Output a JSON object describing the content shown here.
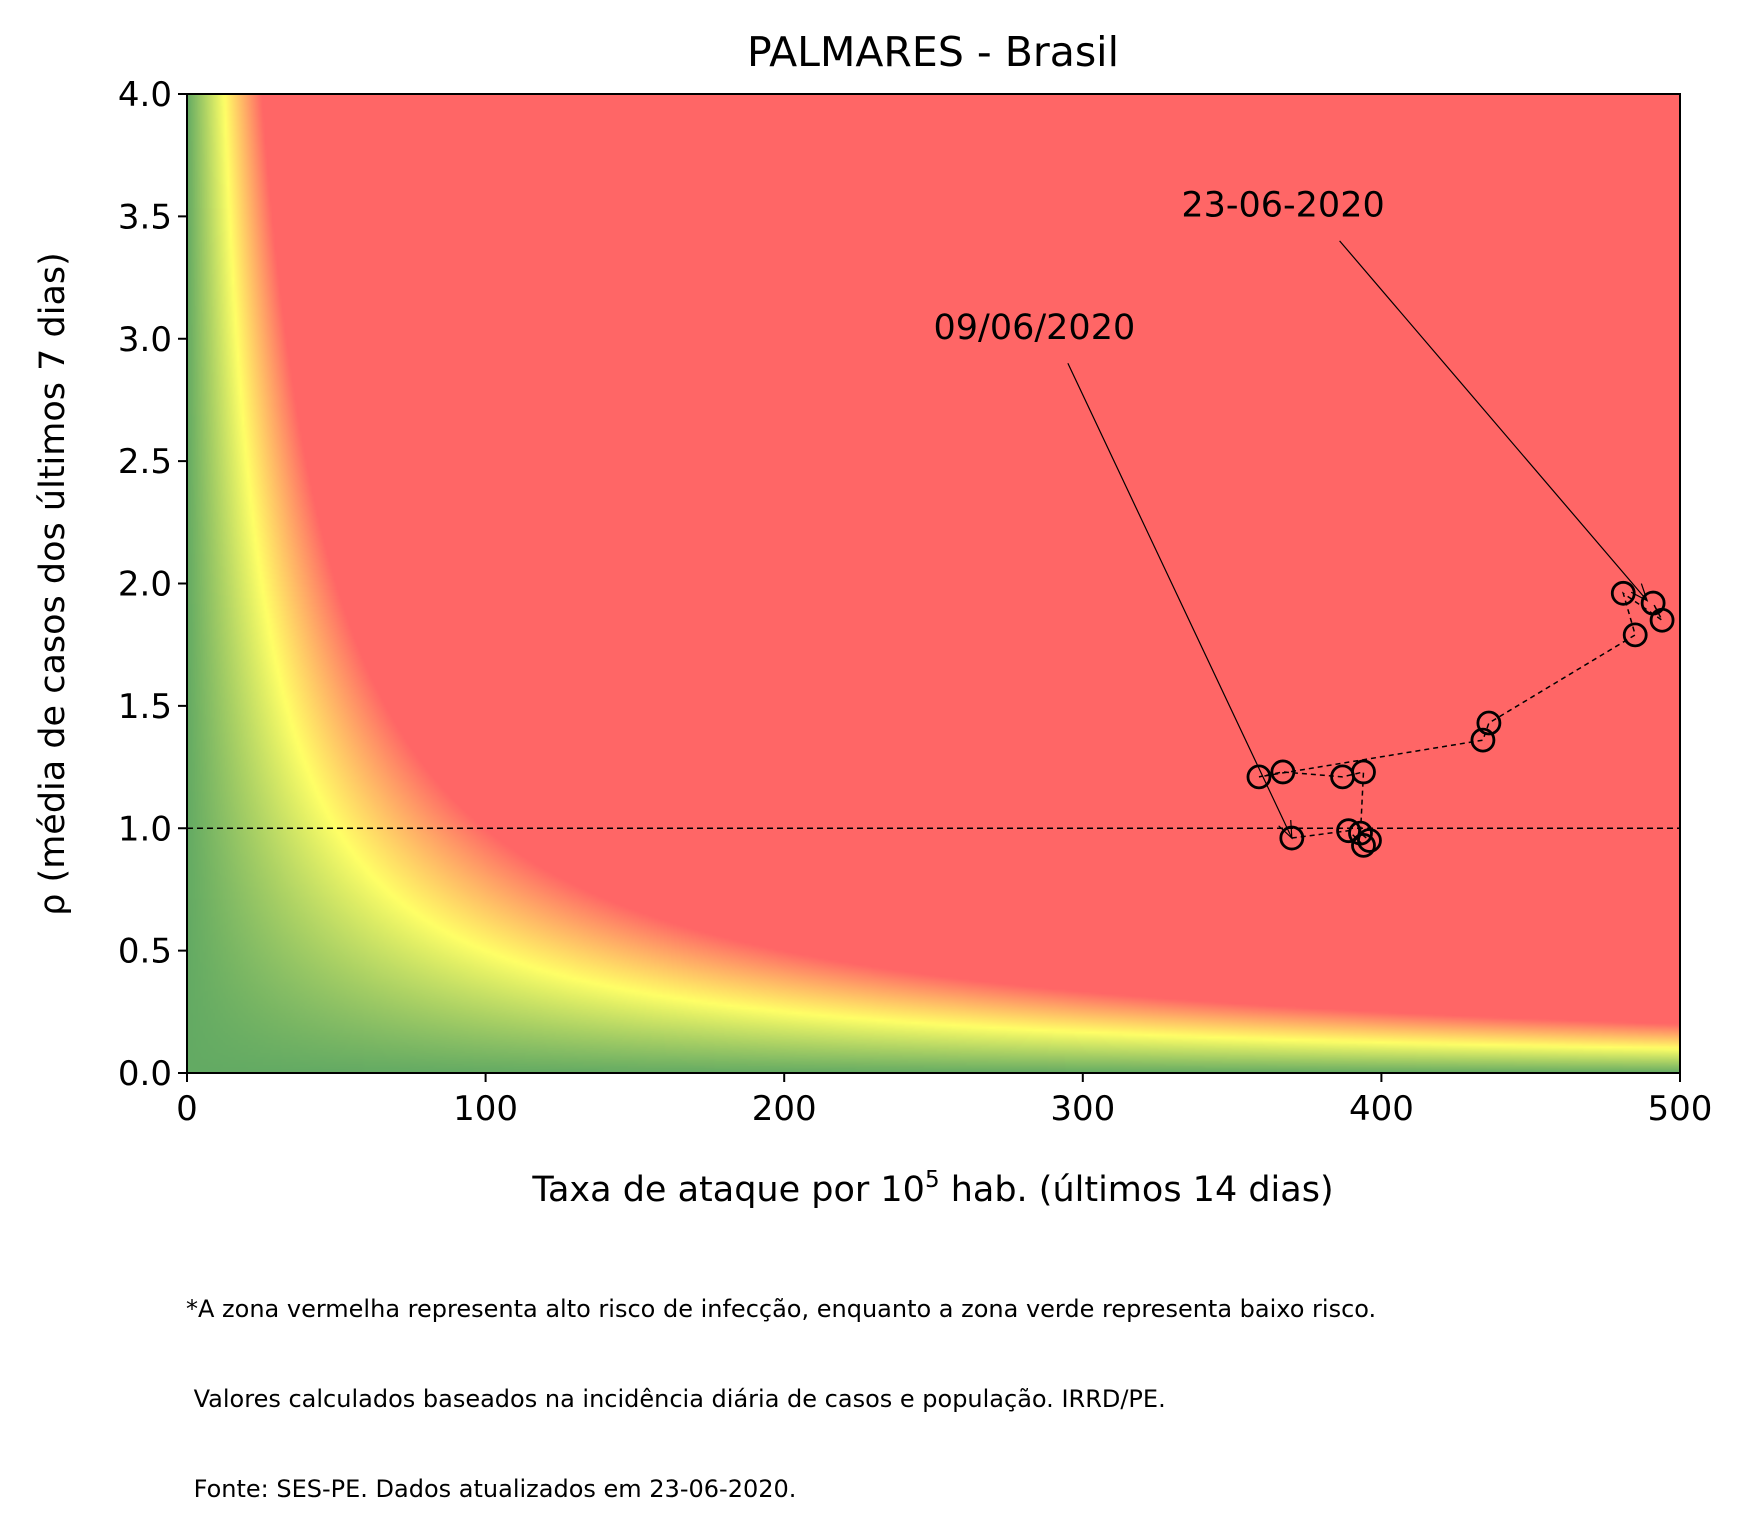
{
  "chart_data": {
    "type": "scatter",
    "title": "PALMARES - Brasil",
    "xlabel_prefix": "Taxa de ataque por 10",
    "xlabel_sup": "5",
    "xlabel_suffix": " hab. (últimos 14 dias)",
    "ylabel": "ρ (média de casos dos últimos 7 dias)",
    "xlim": [
      0,
      500
    ],
    "ylim": [
      0,
      4
    ],
    "xticks": [
      "0",
      "100",
      "200",
      "300",
      "400",
      "500"
    ],
    "yticks": [
      "0.0",
      "0.5",
      "1.0",
      "1.5",
      "2.0",
      "2.5",
      "3.0",
      "3.5",
      "4.0"
    ],
    "reference_line_y": 1.0,
    "grid": false,
    "background": "risk heatmap: green (low) to yellow to red (high) as attack rate × ρ grows",
    "colors": {
      "low": "#63aa63",
      "mid": "#ffff66",
      "high": "#ff6666"
    },
    "points": [
      {
        "x": 370,
        "y": 0.96
      },
      {
        "x": 389,
        "y": 0.99
      },
      {
        "x": 394,
        "y": 0.93
      },
      {
        "x": 396,
        "y": 0.95
      },
      {
        "x": 393,
        "y": 0.98
      },
      {
        "x": 394,
        "y": 1.23
      },
      {
        "x": 387,
        "y": 1.21
      },
      {
        "x": 367,
        "y": 1.23
      },
      {
        "x": 359,
        "y": 1.21
      },
      {
        "x": 434,
        "y": 1.36
      },
      {
        "x": 436,
        "y": 1.43
      },
      {
        "x": 485,
        "y": 1.79
      },
      {
        "x": 481,
        "y": 1.96
      },
      {
        "x": 494,
        "y": 1.85
      },
      {
        "x": 491,
        "y": 1.92
      }
    ],
    "annotations": [
      {
        "text": "09/06/2020",
        "text_x": 250,
        "text_y": 3.0,
        "tail_x": 295,
        "tail_y": 2.9,
        "target_x": 370,
        "target_y": 0.96
      },
      {
        "text": "23-06-2020",
        "text_x": 333,
        "text_y": 3.5,
        "tail_x": 386,
        "tail_y": 3.4,
        "target_x": 489,
        "target_y": 1.93
      }
    ]
  },
  "footnote": [
    "*A zona vermelha representa alto risco de infecção, enquanto a zona verde representa baixo risco.",
    " Valores calculados baseados na incidência diária de casos e população. IRRD/PE.",
    " Fonte: SES-PE. Dados atualizados em 23-06-2020."
  ]
}
